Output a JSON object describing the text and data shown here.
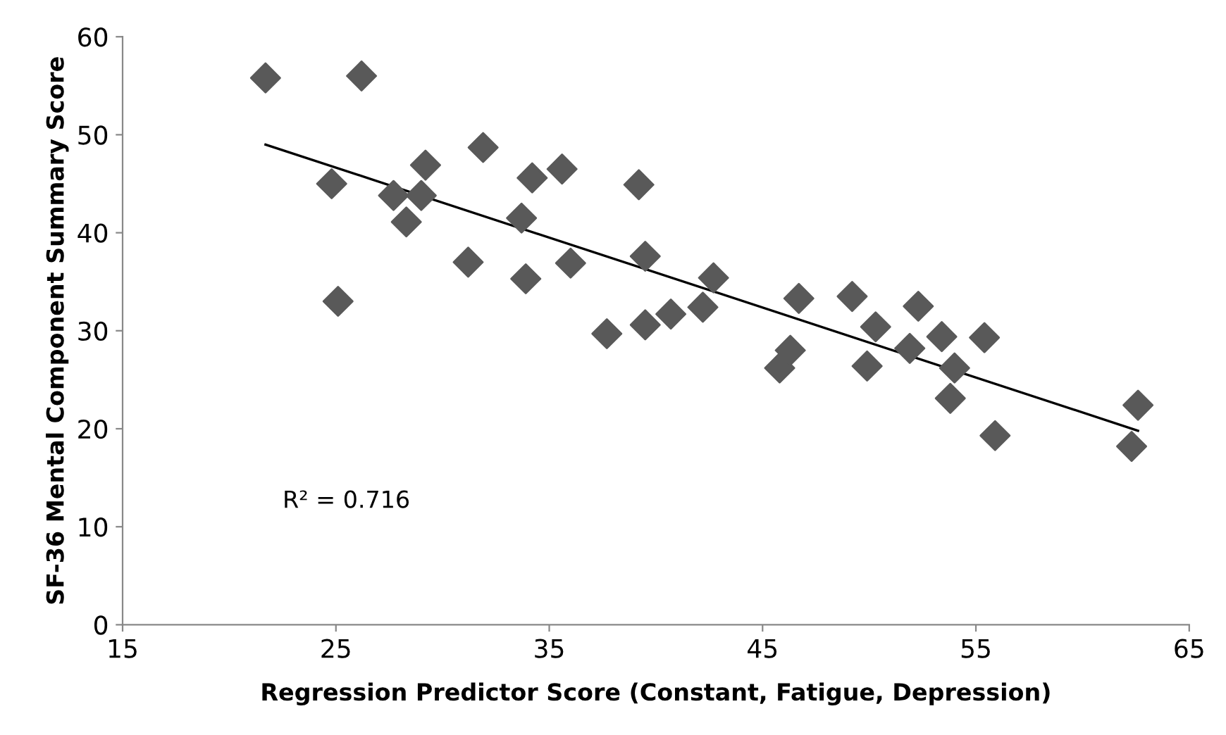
{
  "chart_data": {
    "type": "scatter",
    "xlabel": "Regression Predictor Score (Constant, Fatigue, Depression)",
    "ylabel": "SF-36 Mental Component Summary Score",
    "annotations": [
      "R² = 0.716"
    ],
    "xlim": [
      15,
      65
    ],
    "xticks": [
      15,
      25,
      35,
      45,
      55,
      65
    ],
    "ylim": [
      0,
      60
    ],
    "yticks": [
      0,
      10,
      20,
      30,
      40,
      50,
      60
    ],
    "grid": false,
    "legend": false,
    "series": [
      {
        "marker": "diamond",
        "color": "#595959",
        "x": [
          21.7,
          26.2,
          24.8,
          25.1,
          27.7,
          28.3,
          29.0,
          29.2,
          31.2,
          31.9,
          33.7,
          33.9,
          34.2,
          35.6,
          36.0,
          37.7,
          39.2,
          39.5,
          39.5,
          40.7,
          42.2,
          42.7,
          45.8,
          46.3,
          46.7,
          49.2,
          49.9,
          50.3,
          51.9,
          52.3,
          53.4,
          53.8,
          54.0,
          55.4,
          55.9,
          62.3,
          62.6
        ],
        "values": [
          55.8,
          56.0,
          45.0,
          33.0,
          43.8,
          41.1,
          43.8,
          46.9,
          37.0,
          48.7,
          41.5,
          35.3,
          45.6,
          46.5,
          36.9,
          29.7,
          44.9,
          37.6,
          30.6,
          31.7,
          32.4,
          35.4,
          26.2,
          28.0,
          33.3,
          33.5,
          26.4,
          30.4,
          28.2,
          32.5,
          29.4,
          23.1,
          26.2,
          29.3,
          19.3,
          18.2,
          22.4
        ]
      },
      {
        "type": "line",
        "color": "#000000",
        "line_style": "solid",
        "marker": "none",
        "x": [
          21.7,
          62.6
        ],
        "values": [
          49.0,
          19.8
        ]
      }
    ]
  }
}
